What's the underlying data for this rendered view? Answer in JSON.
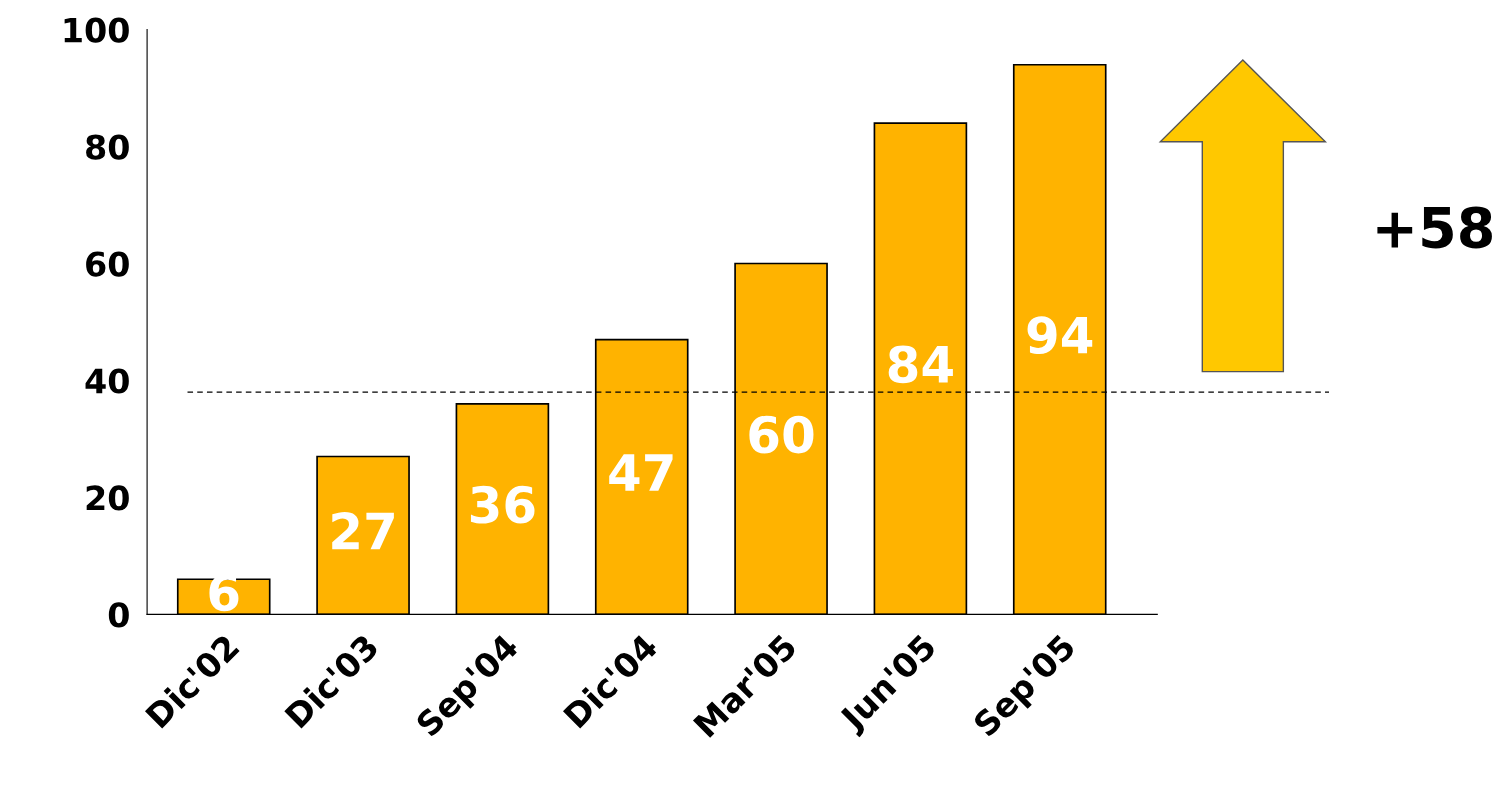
{
  "chart_data": {
    "type": "bar",
    "categories": [
      "Dic'02",
      "Dic'03",
      "Sep'04",
      "Dic'04",
      "Mar'05",
      "Jun'05",
      "Sep'05"
    ],
    "values": [
      6,
      27,
      36,
      47,
      60,
      84,
      94
    ],
    "color": "#ffb300",
    "ylim": [
      0,
      100
    ],
    "yticks": [
      0,
      20,
      40,
      60,
      80,
      100
    ],
    "data_labels": true,
    "ref_lines": [
      {
        "axis": "y",
        "value": 38,
        "line_style": "dashed",
        "color": "#000000"
      }
    ],
    "annotations": [
      "+58"
    ]
  }
}
